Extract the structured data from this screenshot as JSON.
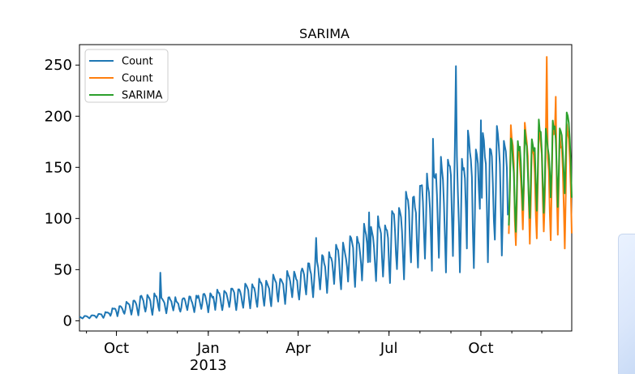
{
  "chart_data": {
    "type": "line",
    "title": "SARIMA",
    "xlabel": "",
    "ylabel": "",
    "ylim": [
      -10,
      270
    ],
    "yticks": [
      0,
      50,
      100,
      150,
      200,
      250
    ],
    "xticks": [
      {
        "date": "2012-10-01",
        "label": "Oct",
        "sublabel": ""
      },
      {
        "date": "2013-01-01",
        "label": "Jan",
        "sublabel": "2013"
      },
      {
        "date": "2013-04-01",
        "label": "Apr",
        "sublabel": ""
      },
      {
        "date": "2013-07-01",
        "label": "Jul",
        "sublabel": ""
      },
      {
        "date": "2013-10-01",
        "label": "Oct",
        "sublabel": ""
      }
    ],
    "xlim": [
      "2012-08-25",
      "2013-12-31"
    ],
    "legend": {
      "position": "upper-left",
      "entries": [
        "Count",
        "Count",
        "SARIMA"
      ]
    },
    "grid": false,
    "series": [
      {
        "name": "Count",
        "color": "#1f77b4",
        "start": "2012-08-25",
        "end": "2013-10-28",
        "anchors": [
          {
            "x": "2012-08-25",
            "low": 2,
            "high": 4
          },
          {
            "x": "2012-09-15",
            "low": 3,
            "high": 7
          },
          {
            "x": "2012-10-01",
            "low": 5,
            "high": 14
          },
          {
            "x": "2012-11-01",
            "low": 8,
            "high": 28
          },
          {
            "x": "2012-12-01",
            "low": 9,
            "high": 22
          },
          {
            "x": "2013-01-01",
            "low": 10,
            "high": 28
          },
          {
            "x": "2013-02-01",
            "low": 12,
            "high": 34
          },
          {
            "x": "2013-03-01",
            "low": 15,
            "high": 42
          },
          {
            "x": "2013-04-01",
            "low": 22,
            "high": 50
          },
          {
            "x": "2013-05-01",
            "low": 30,
            "high": 70
          },
          {
            "x": "2013-06-01",
            "low": 38,
            "high": 90
          },
          {
            "x": "2013-07-01",
            "low": 40,
            "high": 105
          },
          {
            "x": "2013-08-01",
            "low": 55,
            "high": 140
          },
          {
            "x": "2013-09-01",
            "low": 60,
            "high": 170
          },
          {
            "x": "2013-10-28",
            "low": 70,
            "high": 195
          }
        ],
        "peaks": [
          {
            "x": "2012-11-14",
            "y": 47
          },
          {
            "x": "2013-04-19",
            "y": 81
          },
          {
            "x": "2013-06-11",
            "y": 106
          },
          {
            "x": "2013-08-14",
            "y": 178
          },
          {
            "x": "2013-09-06",
            "y": 249
          },
          {
            "x": "2013-09-18",
            "y": 186
          },
          {
            "x": "2013-10-01",
            "y": 196
          }
        ]
      },
      {
        "name": "Count",
        "color": "#ff7f0e",
        "start": "2013-10-29",
        "end": "2013-12-31",
        "anchors": [
          {
            "x": "2013-10-29",
            "low": 78,
            "high": 185
          },
          {
            "x": "2013-12-31",
            "low": 85,
            "high": 200
          }
        ],
        "peaks": [
          {
            "x": "2013-12-06",
            "y": 258
          },
          {
            "x": "2013-12-15",
            "y": 219
          }
        ]
      },
      {
        "name": "SARIMA",
        "color": "#2ca02c",
        "start": "2013-10-29",
        "end": "2013-12-31",
        "anchors": [
          {
            "x": "2013-10-29",
            "low": 92,
            "high": 180
          },
          {
            "x": "2013-12-31",
            "low": 125,
            "high": 205
          }
        ],
        "peaks": []
      }
    ]
  }
}
